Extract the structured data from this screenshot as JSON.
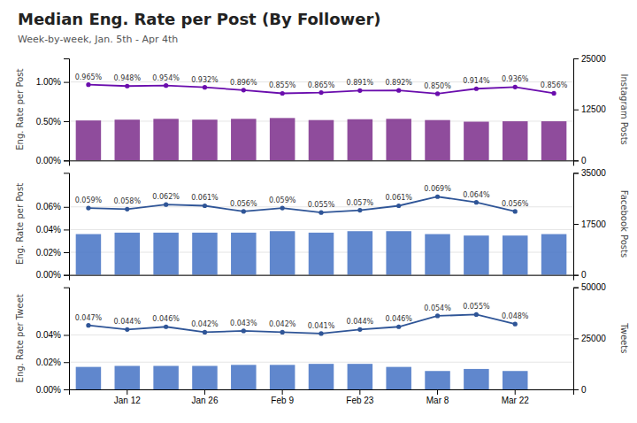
{
  "chart_data": [
    {
      "type": "bar",
      "title": "Median Eng. Rate per Post (By Follower)",
      "subtitle": "Week-by-week, Jan. 5th - Apr 4th",
      "categories": [
        null,
        null,
        null,
        null,
        null,
        null,
        null,
        null,
        null,
        null,
        null,
        null,
        null
      ],
      "ylabel": "Eng. Rate per Post",
      "y2label": "Instagram Posts",
      "ylim": [
        0,
        0.013
      ],
      "yticks": [
        {
          "value": 0.0,
          "label": "0.00%"
        },
        {
          "value": 0.005,
          "label": "0.50%"
        },
        {
          "value": 0.01,
          "label": "1.00%"
        }
      ],
      "y2lim": [
        0,
        25000
      ],
      "y2ticks": [
        0,
        12500,
        25000
      ],
      "grid": true,
      "series": [
        {
          "type": "bar",
          "axis": "y2",
          "color": "#7B2D8B",
          "values": [
            9800,
            10000,
            10200,
            10000,
            10200,
            10400,
            9900,
            10100,
            10200,
            9900,
            9500,
            9600,
            9600
          ]
        },
        {
          "type": "line",
          "color": "#6A0DAD",
          "marker": "circle",
          "data_labels": true,
          "values": [
            0.00965,
            0.00948,
            0.00954,
            0.00932,
            0.00896,
            0.00855,
            0.00865,
            0.00891,
            0.00892,
            0.0085,
            0.00914,
            0.00936,
            0.00856
          ],
          "value_labels": [
            "0.965%",
            "0.948%",
            "0.954%",
            "0.932%",
            "0.896%",
            "0.855%",
            "0.865%",
            "0.891%",
            "0.892%",
            "0.850%",
            "0.914%",
            "0.936%",
            "0.856%"
          ]
        }
      ]
    },
    {
      "type": "bar",
      "categories": [
        null,
        null,
        null,
        null,
        null,
        null,
        null,
        null,
        null,
        null,
        null,
        null,
        null
      ],
      "ylabel": "Eng. Rate per Post",
      "y2label": "Facebook Posts",
      "ylim": [
        0,
        0.0009
      ],
      "yticks": [
        {
          "value": 0.0,
          "label": "0.00%"
        },
        {
          "value": 0.0002,
          "label": "0.02%"
        },
        {
          "value": 0.0004,
          "label": "0.04%"
        },
        {
          "value": 0.0006,
          "label": "0.06%"
        }
      ],
      "y2lim": [
        0,
        35000
      ],
      "y2ticks": [
        0,
        17500,
        35000
      ],
      "grid": true,
      "series": [
        {
          "type": "bar",
          "axis": "y2",
          "color": "#4472C4",
          "values": [
            14000,
            14500,
            14500,
            14500,
            14500,
            15000,
            14500,
            15000,
            15000,
            14000,
            13500,
            13500,
            14000
          ]
        },
        {
          "type": "line",
          "color": "#2F5597",
          "marker": "circle",
          "data_labels": true,
          "values": [
            0.00059,
            0.00058,
            0.00062,
            0.00061,
            0.00056,
            0.00059,
            0.00055,
            0.00057,
            0.00061,
            0.00069,
            0.00064,
            0.00056,
            null
          ],
          "value_labels": [
            "0.059%",
            "0.058%",
            "0.062%",
            "0.061%",
            "0.056%",
            "0.059%",
            "0.055%",
            "0.057%",
            "0.061%",
            "0.069%",
            "0.064%",
            "0.056%",
            null
          ]
        }
      ]
    },
    {
      "type": "bar",
      "categories": [
        null,
        "Jan 12",
        null,
        "Jan 26",
        null,
        "Feb 9",
        null,
        "Feb 23",
        null,
        "Mar 8",
        null,
        "Mar 22",
        null
      ],
      "ylabel": "Eng. Rate per Tweet",
      "y2label": "Tweets",
      "ylim": [
        0,
        0.00075
      ],
      "yticks": [
        {
          "value": 0.0,
          "label": "0.00%"
        },
        {
          "value": 0.0002,
          "label": "0.02%"
        },
        {
          "value": 0.0004,
          "label": "0.04%"
        }
      ],
      "y2lim": [
        0,
        50000
      ],
      "y2ticks": [
        0,
        25000,
        50000
      ],
      "grid": true,
      "series": [
        {
          "type": "bar",
          "axis": "y2",
          "color": "#4472C4",
          "values": [
            11000,
            11500,
            11500,
            11500,
            12000,
            12000,
            12500,
            12500,
            11000,
            9000,
            10000,
            9000,
            null
          ]
        },
        {
          "type": "line",
          "color": "#2F5597",
          "marker": "circle",
          "data_labels": true,
          "values": [
            0.00047,
            0.00044,
            0.00046,
            0.00042,
            0.00043,
            0.00042,
            0.00041,
            0.00044,
            0.00046,
            0.00054,
            0.00055,
            0.00048,
            null
          ],
          "value_labels": [
            "0.047%",
            "0.044%",
            "0.046%",
            "0.042%",
            "0.043%",
            "0.042%",
            "0.041%",
            "0.044%",
            "0.046%",
            "0.054%",
            "0.055%",
            "0.048%",
            null
          ]
        }
      ]
    }
  ]
}
